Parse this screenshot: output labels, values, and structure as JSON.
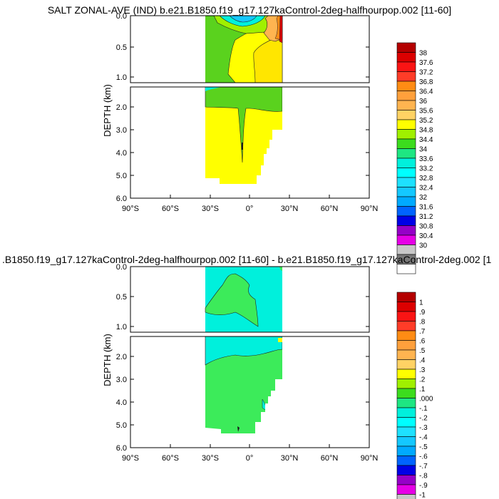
{
  "panels": [
    {
      "title": "SALT ZONAL-AVE (IND) b.e21.B1850.f19_g17.127kaControl-2deg-halfhourpop.002 [11-60]",
      "ylabel": "DEPTH (km)",
      "upper_ticks": [
        "0.0",
        "0.5",
        "1.0"
      ],
      "lower_ticks": [
        "2.0",
        "3.0",
        "4.0",
        "5.0",
        "6.0"
      ],
      "x_ticks": [
        "90°S",
        "60°S",
        "30°S",
        "0°",
        "30°N",
        "60°N",
        "90°N"
      ],
      "colorbar_labels": [
        "38",
        "37.6",
        "37.2",
        "36.8",
        "36.4",
        "36",
        "35.6",
        "35.2",
        "34.8",
        "34.4",
        "34",
        "33.6",
        "33.2",
        "32.8",
        "32.4",
        "32",
        "31.6",
        "31.2",
        "30.8",
        "30.4",
        "30"
      ]
    },
    {
      "title": ".B1850.f19_g17.127kaControl-2deg-halfhourpop.002 [11-60] - b.e21.B1850.f19_g17.127kaControl-2deg.002 [1",
      "ylabel": "DEPTH (km)",
      "upper_ticks": [
        "0.0",
        "0.5",
        "1.0"
      ],
      "lower_ticks": [
        "2.0",
        "3.0",
        "4.0",
        "5.0",
        "6.0"
      ],
      "x_ticks": [
        "90°S",
        "60°S",
        "30°S",
        "0°",
        "30°N",
        "60°N",
        "90°N"
      ],
      "colorbar_labels": [
        "1",
        ".9",
        ".8",
        ".7",
        ".6",
        ".5",
        ".4",
        ".3",
        ".2",
        ".1",
        ".000",
        "-.1",
        "-.2",
        "-.3",
        "-.4",
        "-.5",
        "-.6",
        "-.7",
        "-.8",
        "-.9",
        "-1"
      ]
    }
  ],
  "colors": {
    "palette": [
      "#b40000",
      "#dc0000",
      "#fa1414",
      "#ff3c28",
      "#ff8c14",
      "#ffa03c",
      "#ffb450",
      "#ffd264",
      "#ffff00",
      "#a0f000",
      "#3cdc1e",
      "#1ee682",
      "#00f0dc",
      "#00ffff",
      "#1ee1ff",
      "#14c8ff",
      "#00aaff",
      "#0064ff",
      "#0000e6",
      "#9600c8",
      "#e600e6",
      "#c8c8c8",
      "#787878",
      "#ffffff"
    ],
    "top_green": "#5ad21e",
    "top_yellow": "#ffff00",
    "top_darkyellow": "#ffe600",
    "top_cyan": "#00f0dc",
    "top_orange": "#ffb450",
    "bottom_cyan": "#00f0dc",
    "bottom_green": "#3ceb5a"
  },
  "chart_data": [
    {
      "type": "heatmap",
      "title": "SALT ZONAL-AVE (IND) b.e21.B1850.f19_g17.127kaControl-2deg-halfhourpop.002 [11-60]",
      "xlabel": "",
      "ylabel": "DEPTH (km)",
      "xlim": [
        -90,
        90
      ],
      "ylim": [
        6.0,
        0.0
      ],
      "data_extent_lat": [
        -33,
        25
      ],
      "levels": [
        30,
        30.4,
        30.8,
        31.2,
        31.6,
        32,
        32.4,
        32.8,
        33.2,
        33.6,
        34,
        34.4,
        34.8,
        35.2,
        35.6,
        36,
        36.4,
        36.8,
        37.2,
        37.6,
        38
      ],
      "regions": [
        {
          "depth_km": "0-0.2",
          "lat": "-33 to 25",
          "value_range": "33.6-38"
        },
        {
          "depth_km": "0.2-1.2",
          "lat": "-33 to 0",
          "value_range": "34.4-34.8"
        },
        {
          "depth_km": "0.2-1.2",
          "lat": "0 to 25",
          "value_range": "34.8-35.2"
        },
        {
          "depth_km": "1.2-2.0",
          "lat": "-33 to 25",
          "value_range": "34.4-34.8"
        },
        {
          "depth_km": "2.0-5.4",
          "lat": "-33 to 25",
          "value_range": "34.8-35.2"
        }
      ]
    },
    {
      "type": "heatmap",
      "title": ".B1850.f19_g17.127kaControl-2deg-halfhourpop.002 [11-60] - b.e21.B1850.f19_g17.127kaControl-2deg.002 [1",
      "xlabel": "",
      "ylabel": "DEPTH (km)",
      "xlim": [
        -90,
        90
      ],
      "ylim": [
        6.0,
        0.0
      ],
      "data_extent_lat": [
        -33,
        25
      ],
      "levels": [
        -1,
        -0.9,
        -0.8,
        -0.7,
        -0.6,
        -0.5,
        -0.4,
        -0.3,
        -0.2,
        -0.1,
        0,
        0.1,
        0.2,
        0.3,
        0.4,
        0.5,
        0.6,
        0.7,
        0.8,
        0.9,
        1
      ],
      "regions": [
        {
          "depth_km": "0-1.2",
          "lat": "-33 to 25",
          "value_range": "0.000 to 0.1"
        },
        {
          "depth_km": "0.25-0.9",
          "lat": "-20 to 0",
          "value_range": "0.1 to 0.2"
        },
        {
          "depth_km": "1.2-2.2",
          "lat": "-33 to 25",
          "value_range": "0.000 to 0.1"
        },
        {
          "depth_km": "2.2-5.4",
          "lat": "-33 to 25",
          "value_range": "0.1 to 0.2"
        }
      ]
    }
  ]
}
